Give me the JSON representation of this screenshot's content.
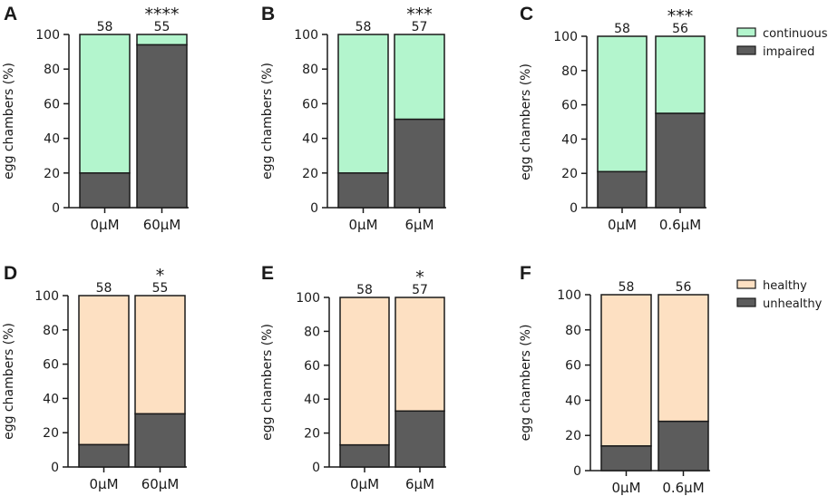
{
  "chart_data": [
    {
      "type": "bar",
      "stacked": true,
      "panel": "A",
      "ylabel": "egg chambers (%)",
      "ylim": [
        0,
        100
      ],
      "yticks": [
        0,
        20,
        40,
        60,
        80,
        100
      ],
      "categories": [
        "0μM",
        "60μM"
      ],
      "series": [
        {
          "name": "impaired",
          "values": [
            20,
            94
          ]
        },
        {
          "name": "continuous",
          "values": [
            80,
            6
          ]
        }
      ],
      "counts": [
        "58",
        "55"
      ],
      "significance": [
        "",
        "****"
      ]
    },
    {
      "type": "bar",
      "stacked": true,
      "panel": "B",
      "ylabel": "egg chambers (%)",
      "ylim": [
        0,
        100
      ],
      "yticks": [
        0,
        20,
        40,
        60,
        80,
        100
      ],
      "categories": [
        "0μM",
        "6μM"
      ],
      "series": [
        {
          "name": "impaired",
          "values": [
            20,
            51
          ]
        },
        {
          "name": "continuous",
          "values": [
            80,
            49
          ]
        }
      ],
      "counts": [
        "58",
        "57"
      ],
      "significance": [
        "",
        "***"
      ]
    },
    {
      "type": "bar",
      "stacked": true,
      "panel": "C",
      "ylabel": "egg chambers (%)",
      "ylim": [
        0,
        100
      ],
      "yticks": [
        0,
        20,
        40,
        60,
        80,
        100
      ],
      "categories": [
        "0μM",
        "0.6μM"
      ],
      "series": [
        {
          "name": "impaired",
          "values": [
            21,
            55
          ]
        },
        {
          "name": "continuous",
          "values": [
            79,
            45
          ]
        }
      ],
      "counts": [
        "58",
        "56"
      ],
      "significance": [
        "",
        "***"
      ],
      "legend": {
        "position": "right",
        "entries": [
          {
            "label": "continuous",
            "color": "#b3f5cd"
          },
          {
            "label": "impaired",
            "color": "#5c5c5c"
          }
        ]
      }
    },
    {
      "type": "bar",
      "stacked": true,
      "panel": "D",
      "ylabel": "egg chambers (%)",
      "ylim": [
        0,
        100
      ],
      "yticks": [
        0,
        20,
        40,
        60,
        80,
        100
      ],
      "categories": [
        "0μM",
        "60μM"
      ],
      "series": [
        {
          "name": "unhealthy",
          "values": [
            13,
            31
          ]
        },
        {
          "name": "healthy",
          "values": [
            87,
            69
          ]
        }
      ],
      "counts": [
        "58",
        "55"
      ],
      "significance": [
        "",
        "*"
      ]
    },
    {
      "type": "bar",
      "stacked": true,
      "panel": "E",
      "ylabel": "egg chambers (%)",
      "ylim": [
        0,
        100
      ],
      "yticks": [
        0,
        20,
        40,
        60,
        80,
        100
      ],
      "categories": [
        "0μM",
        "6μM"
      ],
      "series": [
        {
          "name": "unhealthy",
          "values": [
            13,
            33
          ]
        },
        {
          "name": "healthy",
          "values": [
            87,
            67
          ]
        }
      ],
      "counts": [
        "58",
        "57"
      ],
      "significance": [
        "",
        "*"
      ]
    },
    {
      "type": "bar",
      "stacked": true,
      "panel": "F",
      "ylabel": "egg chambers (%)",
      "ylim": [
        0,
        100
      ],
      "yticks": [
        0,
        20,
        40,
        60,
        80,
        100
      ],
      "categories": [
        "0μM",
        "0.6μM"
      ],
      "series": [
        {
          "name": "unhealthy",
          "values": [
            14,
            28
          ]
        },
        {
          "name": "healthy",
          "values": [
            86,
            72
          ]
        }
      ],
      "counts": [
        "58",
        "56"
      ],
      "significance": [
        "",
        ""
      ],
      "legend": {
        "position": "right",
        "entries": [
          {
            "label": "healthy",
            "color": "#fde0c2"
          },
          {
            "label": "unhealthy",
            "color": "#5c5c5c"
          }
        ]
      }
    }
  ],
  "colors": {
    "continuous": "#b3f5cd",
    "healthy": "#fde0c2",
    "dark": "#5c5c5c",
    "stroke": "#1a1a1a"
  }
}
